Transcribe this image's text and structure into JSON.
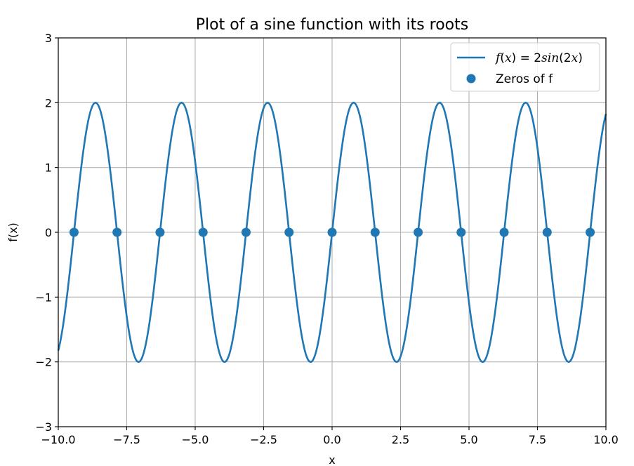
{
  "chart_data": {
    "type": "line",
    "title": "Plot of a sine function with its roots",
    "xlabel": "x",
    "ylabel": "f(x)",
    "xlim": [
      -10,
      10
    ],
    "ylim": [
      -3,
      3
    ],
    "grid": true,
    "legend_position": "top-right",
    "x_ticks": [
      -10,
      -7.5,
      -5,
      -2.5,
      0,
      2.5,
      5,
      7.5,
      10
    ],
    "x_tick_labels": [
      "−10.0",
      "−7.5",
      "−5.0",
      "−2.5",
      "0.0",
      "2.5",
      "5.0",
      "7.5",
      "10.0"
    ],
    "y_ticks": [
      -3,
      -2,
      -1,
      0,
      1,
      2,
      3
    ],
    "y_tick_labels": [
      "−3",
      "−2",
      "−1",
      "0",
      "1",
      "2",
      "3"
    ],
    "series": [
      {
        "name": "f(x) = 2sin(2x)",
        "kind": "line",
        "function": "2*sin(2*x)",
        "amplitude": 2,
        "frequency": 2,
        "color": "#1f77b4"
      },
      {
        "name": "Zeros of f",
        "kind": "scatter",
        "color": "#1f77b4",
        "x": [
          -9.425,
          -7.854,
          -6.283,
          -4.712,
          -3.142,
          -1.571,
          0.0,
          1.571,
          3.142,
          4.712,
          6.283,
          7.854,
          9.425
        ],
        "y": [
          0,
          0,
          0,
          0,
          0,
          0,
          0,
          0,
          0,
          0,
          0,
          0,
          0
        ]
      }
    ]
  }
}
